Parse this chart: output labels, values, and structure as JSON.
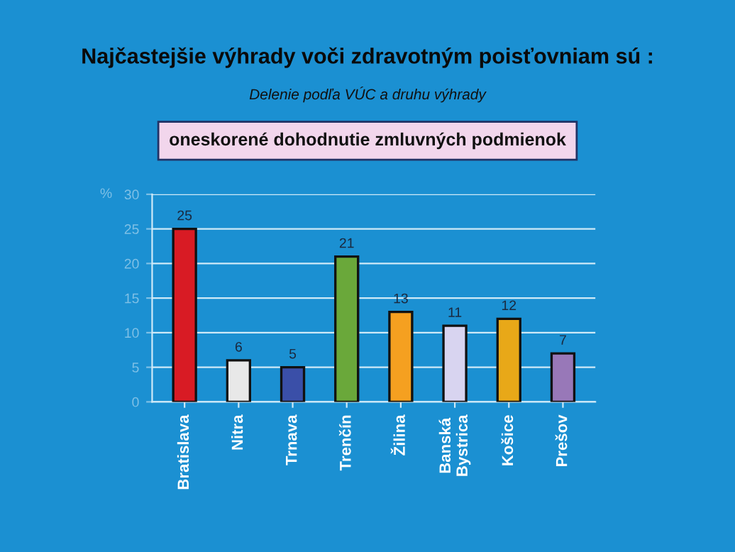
{
  "chart_data": {
    "type": "bar",
    "title": "Najčastejšie výhrady voči zdravotným poisťovniam sú :",
    "subtitle": "Delenie podľa VÚC a druhu výhrady",
    "annotations": [
      "oneskorené dohodnutie zmluvných podmienok"
    ],
    "ylabel": "%",
    "categories": [
      "Bratislava",
      "Nitra",
      "Trnava",
      "Trenčín",
      "Žilina",
      "Banská\nBystrica",
      "Košice",
      "Prešov"
    ],
    "values": [
      25,
      6,
      5,
      21,
      13,
      11,
      12,
      7
    ],
    "colors": [
      "#d81b24",
      "#e8e8e8",
      "#3a4fa8",
      "#6aa83a",
      "#f5a020",
      "#d8d4f0",
      "#e8a818",
      "#9878b8"
    ],
    "ylim": [
      0,
      30
    ],
    "yticks": [
      0,
      5,
      10,
      15,
      20,
      25,
      30
    ],
    "grid": "y",
    "data_labels": true
  }
}
